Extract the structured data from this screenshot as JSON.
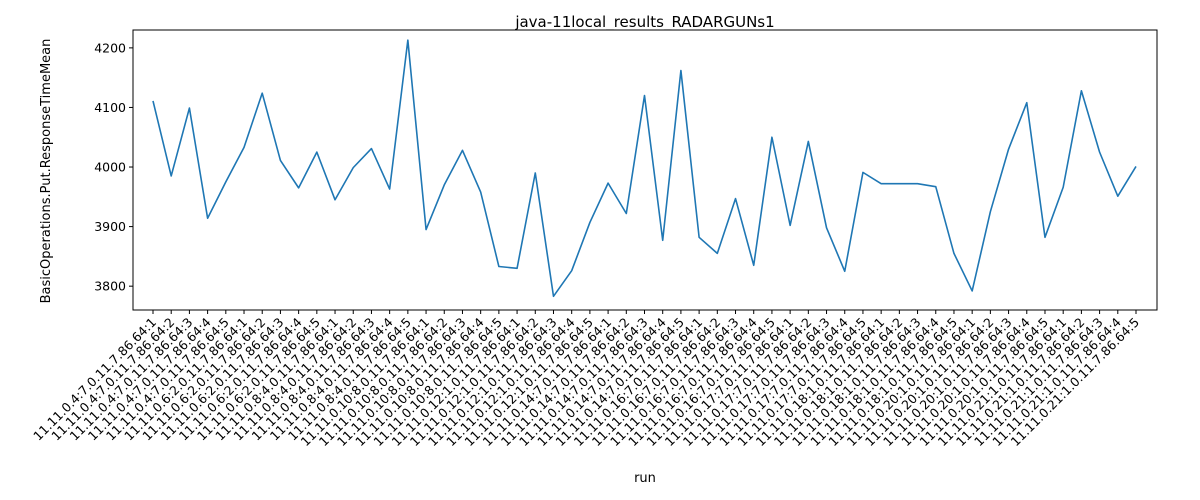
{
  "chart_data": {
    "type": "line",
    "title": "java-11local_results_RADARGUNs1",
    "xlabel": "run",
    "ylabel": "BasicOperations.Put.ResponseTimeMean",
    "ylim": [
      3760,
      4230
    ],
    "yticks": [
      3800,
      3900,
      4000,
      4100,
      4200
    ],
    "grid": false,
    "line_color": "#1f77b4",
    "categories": [
      "11.11.0.4:7.0.11.7.86.64:1",
      "11.11.0.4:7.0.11.7.86.64:2",
      "11.11.0.4:7.0.11.7.86.64:3",
      "11.11.0.4:7.0.11.7.86.64:4",
      "11.11.0.4:7.0.11.7.86.64:5",
      "11.11.0.6:2.0.11.7.86.64:1",
      "11.11.0.6:2.0.11.7.86.64:2",
      "11.11.0.6:2.0.11.7.86.64:3",
      "11.11.0.6:2.0.11.7.86.64:4",
      "11.11.0.6:2.0.11.7.86.64:5",
      "11.11.0.8:4.0.11.7.86.64:1",
      "11.11.0.8:4.0.11.7.86.64:2",
      "11.11.0.8:4.0.11.7.86.64:3",
      "11.11.0.8:4.0.11.7.86.64:4",
      "11.11.0.8:4.0.11.7.86.64:5",
      "11.11.0.10:8.0.11.7.86.64:1",
      "11.11.0.10:8.0.11.7.86.64:2",
      "11.11.0.10:8.0.11.7.86.64:3",
      "11.11.0.10:8.0.11.7.86.64:4",
      "11.11.0.10:8.0.11.7.86.64:5",
      "11.11.0.12:1.0.11.7.86.64:1",
      "11.11.0.12:1.0.11.7.86.64:2",
      "11.11.0.12:1.0.11.7.86.64:3",
      "11.11.0.12:1.0.11.7.86.64:4",
      "11.11.0.12:1.0.11.7.86.64:5",
      "11.11.0.14:7.0.11.7.86.64:1",
      "11.11.0.14:7.0.11.7.86.64:2",
      "11.11.0.14:7.0.11.7.86.64:3",
      "11.11.0.14:7.0.11.7.86.64:4",
      "11.11.0.14:7.0.11.7.86.64:5",
      "11.11.0.16:7.0.11.7.86.64:1",
      "11.11.0.16:7.0.11.7.86.64:2",
      "11.11.0.16:7.0.11.7.86.64:3",
      "11.11.0.16:7.0.11.7.86.64:4",
      "11.11.0.16:7.0.11.7.86.64:5",
      "11.11.0.17:7.0.11.7.86.64:1",
      "11.11.0.17:7.0.11.7.86.64:2",
      "11.11.0.17:7.0.11.7.86.64:3",
      "11.11.0.17:7.0.11.7.86.64:4",
      "11.11.0.17:7.0.11.7.86.64:5",
      "11.11.0.18:1.0.11.7.86.64:1",
      "11.11.0.18:1.0.11.7.86.64:2",
      "11.11.0.18:1.0.11.7.86.64:3",
      "11.11.0.18:1.0.11.7.86.64:4",
      "11.11.0.18:1.0.11.7.86.64:5",
      "11.11.0.20:1.0.11.7.86.64:1",
      "11.11.0.20:1.0.11.7.86.64:2",
      "11.11.0.20:1.0.11.7.86.64:3",
      "11.11.0.20:1.0.11.7.86.64:4",
      "11.11.0.20:1.0.11.7.86.64:5",
      "11.11.0.21:1.0.11.7.86.64:1",
      "11.11.0.21:1.0.11.7.86.64:2",
      "11.11.0.21:1.0.11.7.86.64:3",
      "11.11.0.21:1.0.11.7.86.64:4",
      "11.11.0.21:1.0.11.7.86.64:5"
    ],
    "values": [
      4111,
      3985,
      4099,
      3914,
      3975,
      4033,
      4124,
      4011,
      3965,
      4025,
      3945,
      3999,
      4031,
      3963,
      4213,
      3895,
      3970,
      4028,
      3958,
      3833,
      3830,
      3990,
      3783,
      3826,
      3907,
      3973,
      3922,
      4120,
      3877,
      4162,
      3882,
      3855,
      3947,
      3835,
      4050,
      3902,
      4043,
      3898,
      3825,
      3991,
      3972,
      3972,
      3972,
      3967,
      3855,
      3792,
      3925,
      4030,
      4108,
      3882,
      3966,
      4128,
      4025,
      3951,
      4001
    ]
  }
}
